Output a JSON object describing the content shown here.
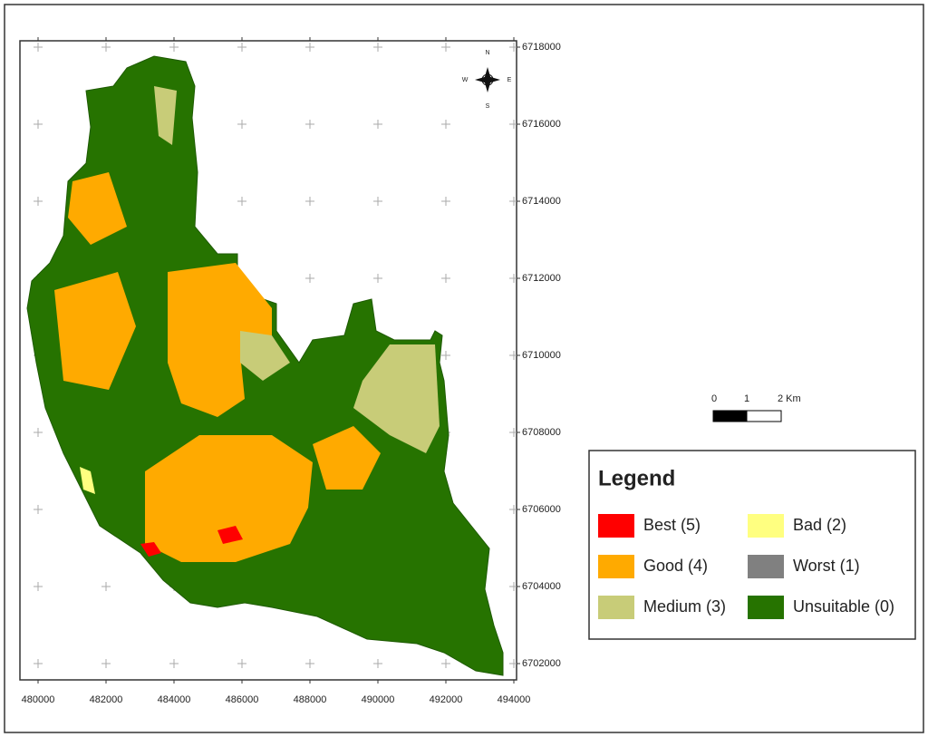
{
  "map": {
    "x_ticks": [
      480000,
      482000,
      484000,
      486000,
      488000,
      490000,
      492000,
      494000
    ],
    "y_ticks": [
      6718000,
      6716000,
      6714000,
      6712000,
      6710000,
      6708000,
      6706000,
      6704000,
      6702000
    ],
    "north_arrow": {
      "n": "N",
      "s": "S",
      "e": "E",
      "w": "W"
    },
    "scale_bar": {
      "labels": [
        "0",
        "1",
        "2 Km"
      ]
    },
    "legend": {
      "title": "Legend",
      "items": [
        {
          "label": "Best (5)",
          "color": "#ff0000"
        },
        {
          "label": "Bad (2)",
          "color": "#ffff80"
        },
        {
          "label": "Good (4)",
          "color": "#ffaa00"
        },
        {
          "label": "Worst (1)",
          "color": "#808080"
        },
        {
          "label": "Medium (3)",
          "color": "#c8cc78"
        },
        {
          "label": "Unsuitable (0)",
          "color": "#267300"
        }
      ]
    }
  }
}
